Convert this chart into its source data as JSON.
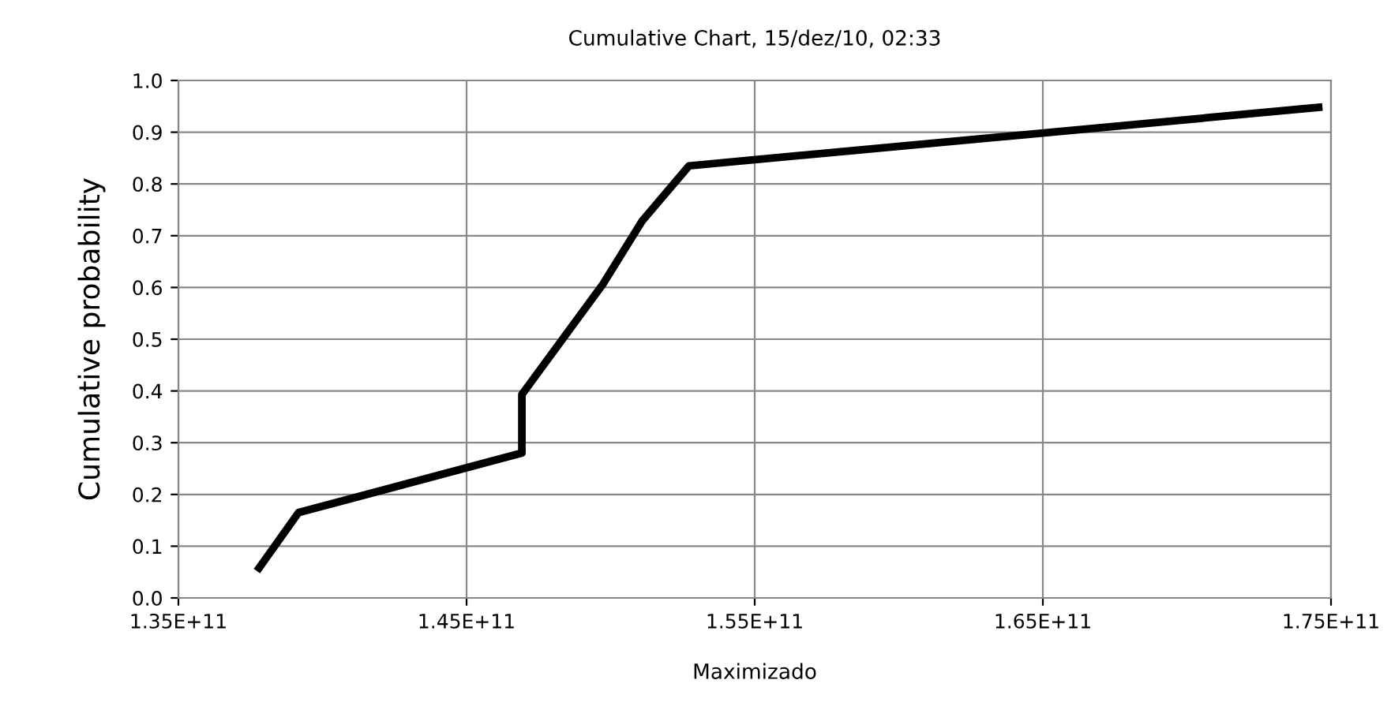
{
  "chart_data": {
    "type": "line",
    "title": "Cumulative Chart, 15/dez/10, 02:33",
    "xlabel": "Maximizado",
    "ylabel": "Cumulative probability",
    "x": [
      137800000000,
      139170000000,
      146920000000,
      146920000000,
      149740000000,
      151100000000,
      152720000000,
      174570000000
    ],
    "series": [
      {
        "color": "#000000",
        "values": [
          0.058,
          0.165,
          0.28,
          0.393,
          0.607,
          0.729,
          0.835,
          0.948
        ]
      }
    ],
    "xlim": [
      135000000000,
      175000000000
    ],
    "xticks": [
      {
        "value": 135000000000,
        "label": "1.35E+11"
      },
      {
        "value": 145000000000,
        "label": "1.45E+11"
      },
      {
        "value": 155000000000,
        "label": "1.55E+11"
      },
      {
        "value": 165000000000,
        "label": "1.65E+11"
      },
      {
        "value": 175000000000,
        "label": "1.75E+11"
      }
    ],
    "ylim": [
      0,
      1
    ],
    "yticks": [
      {
        "value": 0,
        "label": "0.0"
      },
      {
        "value": 0.1,
        "label": "0.1"
      },
      {
        "value": 0.2,
        "label": "0.2"
      },
      {
        "value": 0.3,
        "label": "0.3"
      },
      {
        "value": 0.4,
        "label": "0.4"
      },
      {
        "value": 0.5,
        "label": "0.5"
      },
      {
        "value": 0.6,
        "label": "0.6"
      },
      {
        "value": 0.7,
        "label": "0.7"
      },
      {
        "value": 0.8,
        "label": "0.8"
      },
      {
        "value": 0.9,
        "label": "0.9"
      },
      {
        "value": 1,
        "label": "1.0"
      }
    ],
    "grid": true,
    "marker": "none",
    "line_style": "solid"
  }
}
